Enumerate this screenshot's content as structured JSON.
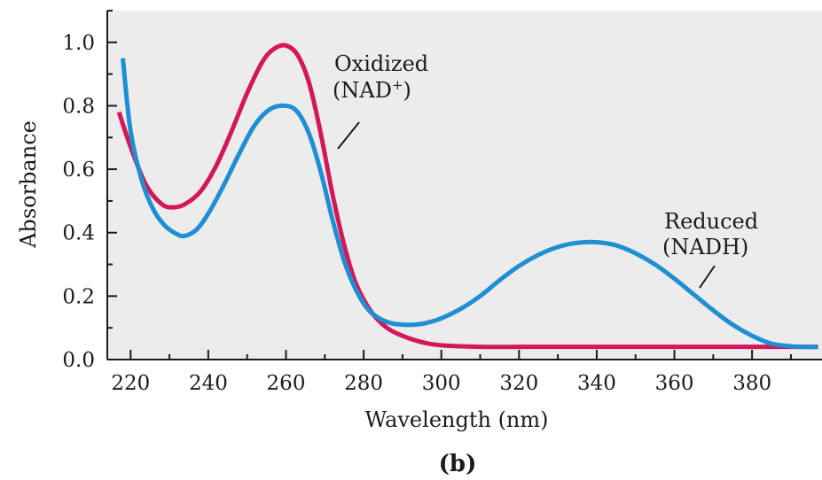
{
  "chart_data": {
    "type": "line",
    "title": "",
    "xlabel": "Wavelength (nm)",
    "ylabel": "Absorbance",
    "xlim": [
      214,
      398
    ],
    "ylim": [
      0.0,
      1.1
    ],
    "x_ticks": [
      220,
      240,
      260,
      280,
      300,
      320,
      340,
      360,
      380
    ],
    "y_ticks": [
      0.0,
      0.2,
      0.4,
      0.6,
      0.8,
      1.0
    ],
    "y_tick_labels": [
      "0.0",
      "0.2",
      "0.4",
      "0.6",
      "0.8",
      "1.0"
    ],
    "grid": false,
    "background": "#ececec",
    "panel_label": "(b)",
    "series": [
      {
        "label_line1": "Oxidized",
        "label_line2_main": "(NAD",
        "label_line2_sup": "+",
        "label_line2_end": ")",
        "color": "#d3185a",
        "x": [
          217,
          220,
          224,
          228,
          231,
          234,
          238,
          242,
          246,
          250,
          254,
          257,
          260,
          263,
          266,
          269,
          272,
          275,
          278,
          282,
          286,
          290,
          295,
          300,
          310,
          320,
          330,
          340,
          350,
          360,
          370,
          380,
          390,
          397
        ],
        "y": [
          0.78,
          0.67,
          0.55,
          0.49,
          0.48,
          0.49,
          0.53,
          0.61,
          0.72,
          0.84,
          0.94,
          0.98,
          0.99,
          0.96,
          0.87,
          0.71,
          0.52,
          0.36,
          0.24,
          0.15,
          0.1,
          0.075,
          0.055,
          0.045,
          0.04,
          0.04,
          0.04,
          0.04,
          0.04,
          0.04,
          0.04,
          0.04,
          0.04,
          0.04
        ]
      },
      {
        "label_line1": "Reduced",
        "label_line2": "(NADH)",
        "color": "#1e8fd2",
        "x": [
          218,
          220,
          223,
          226,
          229,
          232,
          234,
          237,
          240,
          244,
          248,
          252,
          256,
          260,
          263,
          266,
          269,
          272,
          275,
          278,
          281,
          284,
          287,
          290,
          293,
          296,
          300,
          305,
          310,
          315,
          320,
          325,
          330,
          335,
          340,
          345,
          350,
          355,
          360,
          365,
          370,
          375,
          380,
          385,
          390,
          393,
          397
        ],
        "y": [
          0.95,
          0.72,
          0.56,
          0.47,
          0.42,
          0.395,
          0.39,
          0.41,
          0.46,
          0.55,
          0.65,
          0.74,
          0.79,
          0.8,
          0.78,
          0.71,
          0.59,
          0.44,
          0.31,
          0.22,
          0.16,
          0.13,
          0.115,
          0.11,
          0.11,
          0.115,
          0.13,
          0.16,
          0.2,
          0.25,
          0.295,
          0.33,
          0.355,
          0.368,
          0.37,
          0.36,
          0.335,
          0.3,
          0.255,
          0.205,
          0.155,
          0.11,
          0.075,
          0.05,
          0.042,
          0.04,
          0.04
        ]
      }
    ]
  }
}
